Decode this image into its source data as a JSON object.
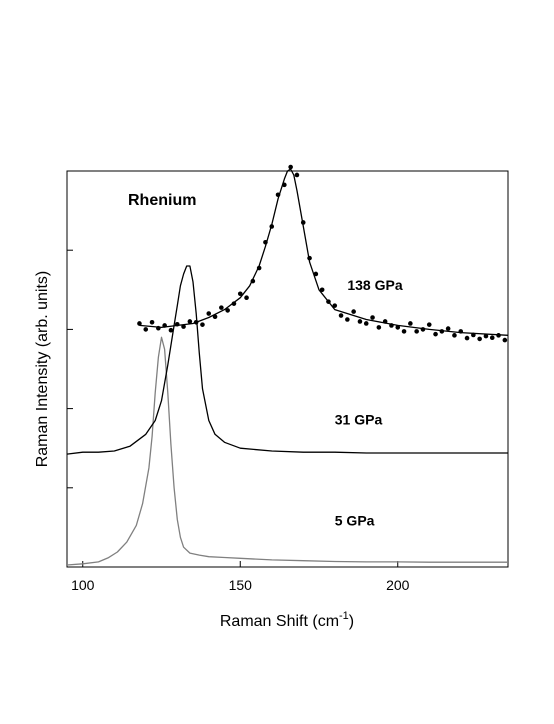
{
  "chart_data": {
    "type": "line",
    "title": "Rhenium",
    "xlabel": "Raman Shift (cm",
    "xlabel_sup": "-1",
    "xlabel_close": ")",
    "ylabel": "Raman Intensity (arb. units)",
    "xlim": [
      95,
      235
    ],
    "ylim": [
      0,
      100
    ],
    "x_ticks": [
      100,
      150,
      200
    ],
    "x_tick_labels": [
      "100",
      "150",
      "200"
    ],
    "y_ticks": [
      0,
      20,
      40,
      60,
      80
    ],
    "grid": false,
    "colors": {
      "series_5": "#808080",
      "series_31": "#000000",
      "series_138": "#000000",
      "axes": "#000000"
    },
    "series": [
      {
        "label": "5 GPa",
        "style": "line",
        "x": [
          95,
          100,
          105,
          108,
          111,
          114,
          117,
          119,
          121,
          122,
          123,
          124,
          125,
          126,
          127,
          128,
          129,
          130,
          131,
          132,
          134,
          137,
          140,
          145,
          150,
          160,
          170,
          180,
          190,
          200,
          210,
          220,
          235
        ],
        "y": [
          0.5,
          0.8,
          1.3,
          2.3,
          3.8,
          6.3,
          10.5,
          16,
          25,
          33,
          44,
          53,
          58,
          55,
          44,
          31,
          20,
          12,
          7.5,
          5,
          3.5,
          3,
          2.6,
          2.4,
          2.2,
          1.8,
          1.6,
          1.4,
          1.3,
          1.3,
          1.2,
          1.2,
          1.2
        ]
      },
      {
        "label": "31 GPa",
        "style": "line",
        "x": [
          95,
          100,
          105,
          110,
          115,
          120,
          123,
          125,
          127,
          129,
          130,
          131,
          132,
          133,
          134,
          135,
          136,
          137,
          138,
          140,
          142,
          145,
          150,
          160,
          170,
          180,
          190,
          200,
          210,
          220,
          235
        ],
        "y": [
          28.5,
          29,
          29,
          29.3,
          30.5,
          33.5,
          37,
          42,
          51,
          61,
          66,
          71,
          74,
          76,
          76,
          72,
          64,
          54,
          45,
          37,
          33.5,
          31.5,
          30,
          29.3,
          29,
          29,
          28.8,
          28.8,
          28.8,
          28.8,
          28.8
        ]
      },
      {
        "label": "138 GPa",
        "style": "fit-line",
        "x": [
          118,
          125,
          135,
          140,
          145,
          150,
          153,
          156,
          158,
          160,
          162,
          164,
          165,
          166,
          167,
          168,
          170,
          172,
          175,
          180,
          190,
          200,
          210,
          220,
          235
        ],
        "y": [
          61,
          60.5,
          61.5,
          63,
          65,
          68,
          71,
          76,
          81,
          86.5,
          93,
          98,
          100,
          100.5,
          99,
          95,
          86,
          77,
          70,
          65,
          62.5,
          61,
          60,
          59.2,
          58.5
        ]
      },
      {
        "label": "138 GPa",
        "style": "points",
        "x": [
          118,
          120,
          122,
          124,
          126,
          128,
          130,
          132,
          134,
          136,
          138,
          140,
          142,
          144,
          146,
          148,
          150,
          152,
          154,
          156,
          158,
          160,
          162,
          164,
          166,
          168,
          170,
          172,
          174,
          176,
          178,
          180,
          182,
          184,
          186,
          188,
          190,
          192,
          194,
          196,
          198,
          200,
          202,
          204,
          206,
          208,
          210,
          212,
          214,
          216,
          218,
          220,
          222,
          224,
          226,
          228,
          230,
          232,
          234
        ],
        "y": [
          61.5,
          60,
          61.8,
          60.3,
          61,
          59.8,
          61.3,
          60.7,
          62,
          61.8,
          61.2,
          64,
          63.2,
          65.5,
          64.8,
          66.5,
          69,
          68,
          72.2,
          75.5,
          82,
          86,
          94,
          96.5,
          101,
          99,
          87,
          78,
          74,
          70,
          67,
          66,
          63.5,
          62.5,
          64.5,
          62,
          61.5,
          63,
          60.5,
          62,
          61,
          60.5,
          59.5,
          61.5,
          59.5,
          60,
          61.2,
          58.8,
          59.5,
          60.2,
          58.5,
          59.5,
          57.8,
          58.6,
          57.6,
          58.3,
          57.9,
          58.5,
          57.3
        ]
      }
    ],
    "annotations": [
      {
        "text": "138 GPa",
        "x": 184,
        "y": 70
      },
      {
        "text": "31 GPa",
        "x": 180,
        "y": 36
      },
      {
        "text": "5 GPa",
        "x": 180,
        "y": 10.5
      }
    ]
  }
}
